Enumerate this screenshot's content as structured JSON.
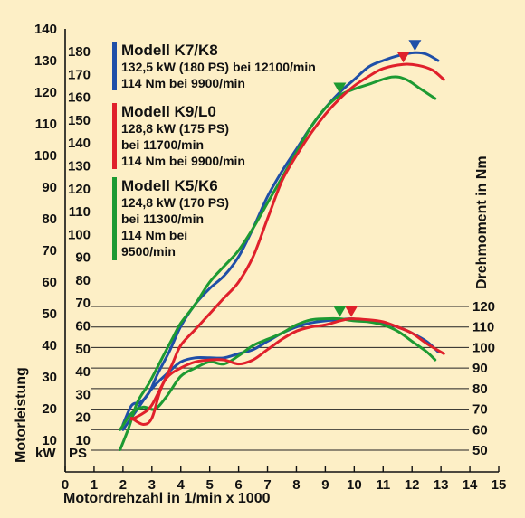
{
  "chart_data": {
    "type": "line",
    "xlabel": "Motordrehzahl in 1/min x 1000",
    "xlim": [
      0,
      15
    ],
    "x_ticks": [
      "0",
      "1",
      "2",
      "3",
      "4",
      "5",
      "6",
      "7",
      "8",
      "9",
      "10",
      "11",
      "12",
      "13",
      "14",
      "15"
    ],
    "y_left_kw_label": "Motorleistung",
    "y_left_kw_unit": "kW",
    "y_left_kw_lim": [
      0,
      140
    ],
    "y_left_kw_ticks": [
      "10",
      "20",
      "30",
      "40",
      "50",
      "60",
      "70",
      "80",
      "90",
      "100",
      "110",
      "120",
      "130",
      "140"
    ],
    "y_left_ps_unit": "PS",
    "y_left_ps_ticks": [
      "10",
      "20",
      "30",
      "40",
      "50",
      "60",
      "70",
      "80",
      "90",
      "100",
      "110",
      "120",
      "130",
      "140",
      "150",
      "160",
      "170",
      "180"
    ],
    "y_right_label": "Drehmoment in Nm",
    "y_right_lim": [
      40,
      125
    ],
    "y_right_ticks": [
      "50",
      "60",
      "70",
      "80",
      "90",
      "100",
      "110",
      "120"
    ],
    "grid": "horizontal lines at each torque tick",
    "series": [
      {
        "name": "Modell K7/K8",
        "color": "#1f4fa8",
        "legend_lines": [
          "132,5 kW (180 PS) bei 12100/min",
          "114 Nm bei 9900/min"
        ],
        "power_kw": [
          [
            2,
            15
          ],
          [
            2.3,
            21
          ],
          [
            2.6,
            22
          ],
          [
            2.9,
            25
          ],
          [
            3.2,
            31
          ],
          [
            3.6,
            38
          ],
          [
            4,
            46
          ],
          [
            4.5,
            53
          ],
          [
            5,
            58
          ],
          [
            5.5,
            62
          ],
          [
            6,
            68
          ],
          [
            6.5,
            77
          ],
          [
            7,
            87
          ],
          [
            7.5,
            95
          ],
          [
            8,
            102
          ],
          [
            8.5,
            109
          ],
          [
            9,
            115
          ],
          [
            9.5,
            120
          ],
          [
            10,
            124
          ],
          [
            10.5,
            128
          ],
          [
            11,
            130
          ],
          [
            11.5,
            131.5
          ],
          [
            12.1,
            132.5
          ],
          [
            12.5,
            132
          ],
          [
            12.9,
            130
          ]
        ],
        "torque_nm": [
          [
            2,
            60
          ],
          [
            2.5,
            70
          ],
          [
            3,
            80
          ],
          [
            3.5,
            87
          ],
          [
            4,
            93
          ],
          [
            4.5,
            95
          ],
          [
            5,
            95
          ],
          [
            5.5,
            95
          ],
          [
            6,
            97
          ],
          [
            6.5,
            99
          ],
          [
            7,
            103
          ],
          [
            7.5,
            107
          ],
          [
            8,
            110
          ],
          [
            8.5,
            112
          ],
          [
            9,
            113
          ],
          [
            9.5,
            113.5
          ],
          [
            9.9,
            114
          ],
          [
            10.5,
            113
          ],
          [
            11,
            112
          ],
          [
            11.5,
            110
          ],
          [
            12,
            107
          ],
          [
            12.5,
            103
          ],
          [
            12.9,
            98
          ]
        ],
        "marker_x": 12.1
      },
      {
        "name": "Modell K9/L0",
        "color": "#e0202b",
        "legend_lines": [
          "128,8 kW (175 PS)",
          "bei 11700/min",
          "114 Nm bei 9900/min"
        ],
        "power_kw": [
          [
            2.3,
            17
          ],
          [
            2.7,
            15
          ],
          [
            3,
            17
          ],
          [
            3.3,
            26
          ],
          [
            3.7,
            34
          ],
          [
            4,
            40
          ],
          [
            4.5,
            45
          ],
          [
            5,
            50
          ],
          [
            5.5,
            55
          ],
          [
            6,
            60
          ],
          [
            6.5,
            68
          ],
          [
            7,
            80
          ],
          [
            7.5,
            92
          ],
          [
            8,
            100
          ],
          [
            8.5,
            107
          ],
          [
            9,
            113
          ],
          [
            9.5,
            118
          ],
          [
            10,
            122
          ],
          [
            10.5,
            125
          ],
          [
            11,
            127.5
          ],
          [
            11.7,
            128.8
          ],
          [
            12.2,
            128.5
          ],
          [
            12.7,
            127
          ],
          [
            13.1,
            124
          ]
        ],
        "torque_nm": [
          [
            2.3,
            65
          ],
          [
            2.7,
            68
          ],
          [
            3,
            72
          ],
          [
            3.5,
            85
          ],
          [
            4,
            90
          ],
          [
            4.5,
            93
          ],
          [
            5,
            94
          ],
          [
            5.5,
            94
          ],
          [
            6,
            92
          ],
          [
            6.5,
            94
          ],
          [
            7,
            99
          ],
          [
            7.5,
            104
          ],
          [
            8,
            108
          ],
          [
            8.5,
            110
          ],
          [
            9,
            111
          ],
          [
            9.5,
            113
          ],
          [
            9.9,
            114
          ],
          [
            10.5,
            113.5
          ],
          [
            11,
            112.5
          ],
          [
            11.5,
            110
          ],
          [
            12,
            107
          ],
          [
            12.5,
            102
          ],
          [
            13.1,
            97
          ]
        ],
        "marker_x": 11.7
      },
      {
        "name": "Modell K5/K6",
        "color": "#1d9a32",
        "legend_lines": [
          "124,8 kW (170 PS)",
          "bei 11300/min",
          "114 Nm bei",
          "9500/min"
        ],
        "power_kw": [
          [
            1.9,
            7
          ],
          [
            2.2,
            14
          ],
          [
            2.5,
            22
          ],
          [
            2.9,
            28
          ],
          [
            3.3,
            35
          ],
          [
            3.7,
            42
          ],
          [
            4,
            47
          ],
          [
            4.5,
            53
          ],
          [
            5,
            60
          ],
          [
            5.5,
            65
          ],
          [
            6,
            70
          ],
          [
            6.5,
            77
          ],
          [
            7,
            85
          ],
          [
            7.5,
            93
          ],
          [
            8,
            101
          ],
          [
            8.5,
            109
          ],
          [
            9,
            115
          ],
          [
            9.5,
            119
          ],
          [
            10,
            121
          ],
          [
            10.5,
            122.5
          ],
          [
            11.3,
            124.8
          ],
          [
            11.8,
            124
          ],
          [
            12.3,
            121
          ],
          [
            12.8,
            118
          ]
        ],
        "torque_nm": [
          [
            1.9,
            60
          ],
          [
            2.3,
            68
          ],
          [
            2.7,
            71
          ],
          [
            3.1,
            70
          ],
          [
            3.5,
            76
          ],
          [
            4,
            86
          ],
          [
            4.5,
            90
          ],
          [
            5,
            93
          ],
          [
            5.5,
            92
          ],
          [
            6,
            96
          ],
          [
            6.5,
            101
          ],
          [
            7,
            104
          ],
          [
            7.5,
            107
          ],
          [
            8,
            111
          ],
          [
            8.5,
            113.5
          ],
          [
            9,
            114
          ],
          [
            9.5,
            114
          ],
          [
            10,
            113
          ],
          [
            10.5,
            112.5
          ],
          [
            11,
            111
          ],
          [
            11.5,
            108
          ],
          [
            12,
            103
          ],
          [
            12.5,
            98
          ],
          [
            12.8,
            94
          ]
        ],
        "marker_x": 9.5
      }
    ]
  }
}
